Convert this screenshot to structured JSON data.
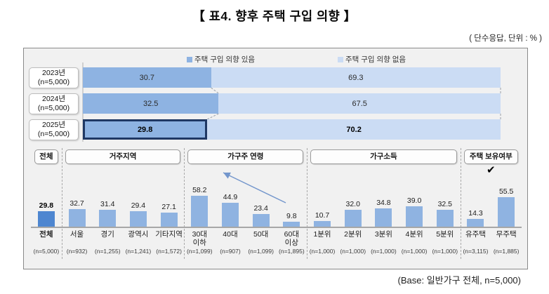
{
  "header": {
    "title": "【 표4. 향후 주택 구입 의향 】",
    "unit_note": "( 단수응답, 단위 : % )"
  },
  "footer": {
    "base_note": "(Base: 일반가구 전체, n=5,000)"
  },
  "legend": {
    "items": [
      {
        "label": "주택 구입 의향 있음",
        "color": "#8EB3E2"
      },
      {
        "label": "주택 구입 의향 없음",
        "color": "#CBDCF4"
      }
    ]
  },
  "colors": {
    "panel_bg": "#F1F1F1",
    "panel_border": "#898989",
    "intend_yes": "#8EB3E2",
    "intend_no": "#CBDCF4",
    "total_bar": "#4E86D0",
    "highlight_border": "#1F3864",
    "axis": "#A7A7A7",
    "arrow": "#7396CC"
  },
  "chart_data": [
    {
      "type": "bar",
      "orientation": "horizontal-stacked",
      "categories": [
        "2023년",
        "2024년",
        "2025년"
      ],
      "category_sublabels": [
        "(n=5,000)",
        "(n=5,000)",
        "(n=5,000)"
      ],
      "series": [
        {
          "name": "주택 구입 의향 있음",
          "values": [
            30.7,
            32.5,
            29.8
          ]
        },
        {
          "name": "주택 구입 의향 없음",
          "values": [
            69.3,
            67.5,
            70.2
          ]
        }
      ],
      "xlim": [
        0,
        100
      ],
      "highlighted_category": "2025년"
    },
    {
      "type": "bar",
      "orientation": "vertical",
      "groups": [
        {
          "label": "전체",
          "span": 1,
          "checkmark": false
        },
        {
          "label": "거주지역",
          "span": 4,
          "checkmark": false
        },
        {
          "label": "가구주 연령",
          "span": 4,
          "checkmark": false
        },
        {
          "label": "가구소득",
          "span": 5,
          "checkmark": false
        },
        {
          "label": "주택 보유여부",
          "span": 2,
          "checkmark": true
        }
      ],
      "categories": [
        "전체",
        "서울",
        "경기",
        "광역시",
        "기타지역",
        "30대\n이하",
        "40대",
        "50대",
        "60대\n이상",
        "1분위",
        "2분위",
        "3분위",
        "4분위",
        "5분위",
        "유주택",
        "무주택"
      ],
      "values": [
        29.8,
        32.7,
        31.4,
        29.4,
        27.1,
        58.2,
        44.9,
        23.4,
        9.8,
        10.7,
        32.0,
        34.8,
        39.0,
        32.5,
        14.3,
        55.5
      ],
      "value_labels": [
        "29.8",
        "32.7",
        "31.4",
        "29.4",
        "27.1",
        "58.2",
        "44.9",
        "23.4",
        "9.8",
        "10.7",
        "32.0",
        "34.8",
        "39.0",
        "32.5",
        "14.3",
        "55.5"
      ],
      "n_labels": [
        "(n=5,000)",
        "(n=932)",
        "(n=1,255)",
        "(n=1,241)",
        "(n=1,572)",
        "(n=1,099)",
        "(n=907)",
        "(n=1,099)",
        "(n=1,895)",
        "(n=1,000)",
        "(n=1,000)",
        "(n=1,000)",
        "(n=1,000)",
        "(n=1,000)",
        "(n=3,115)",
        "(n=1,885)"
      ],
      "ylim": [
        0,
        65
      ],
      "emphasized_category": "전체"
    }
  ]
}
